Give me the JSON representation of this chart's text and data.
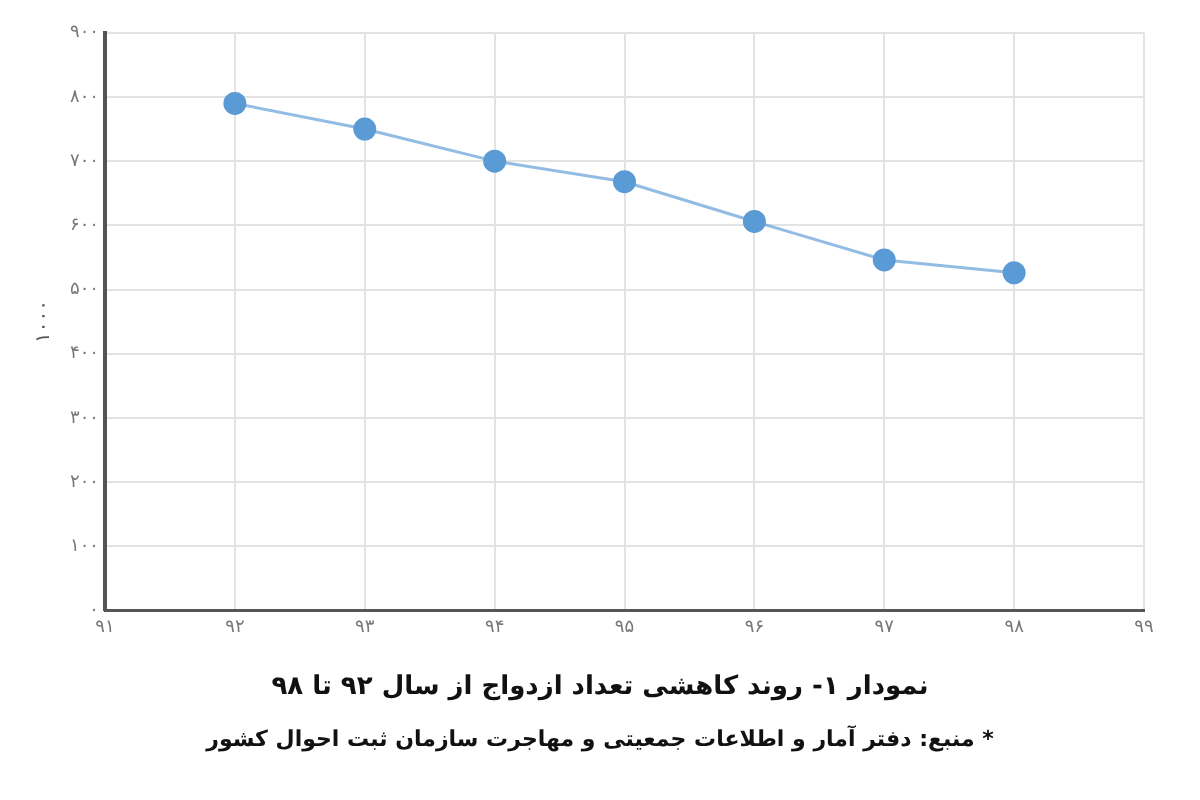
{
  "chart_data": {
    "type": "line",
    "title": "نمودار ۱- روند کاهشی تعداد ازدواج از سال ۹۲ تا ۹۸",
    "annotations": [
      "* منبع: دفتر آمار و اطلاعات جمعیتی و مهاجرت سازمان ثبت احوال کشور"
    ],
    "ylabel": "۱۰۰۰",
    "x": [
      92,
      93,
      94,
      95,
      96,
      97,
      98
    ],
    "series": [
      {
        "color": "#5b9bd5",
        "values": [
          790,
          750,
          700,
          668,
          606,
          546,
          526
        ]
      }
    ],
    "xlim": [
      91,
      99
    ],
    "xticks": [
      {
        "value": 91,
        "label": "۹۱"
      },
      {
        "value": 92,
        "label": "۹۲"
      },
      {
        "value": 93,
        "label": "۹۳"
      },
      {
        "value": 94,
        "label": "۹۴"
      },
      {
        "value": 95,
        "label": "۹۵"
      },
      {
        "value": 96,
        "label": "۹۶"
      },
      {
        "value": 97,
        "label": "۹۷"
      },
      {
        "value": 98,
        "label": "۹۸"
      },
      {
        "value": 99,
        "label": "۹۹"
      }
    ],
    "ylim": [
      0,
      900
    ],
    "yticks": [
      {
        "value": 0,
        "label": "۰"
      },
      {
        "value": 100,
        "label": "۱۰۰"
      },
      {
        "value": 200,
        "label": "۲۰۰"
      },
      {
        "value": 300,
        "label": "۳۰۰"
      },
      {
        "value": 400,
        "label": "۴۰۰"
      },
      {
        "value": 500,
        "label": "۵۰۰"
      },
      {
        "value": 600,
        "label": "۶۰۰"
      },
      {
        "value": 700,
        "label": "۷۰۰"
      },
      {
        "value": 800,
        "label": "۸۰۰"
      },
      {
        "value": 900,
        "label": "۹۰۰"
      }
    ],
    "grid": true,
    "legend": false,
    "marker": "circle",
    "line_style": "solid"
  }
}
